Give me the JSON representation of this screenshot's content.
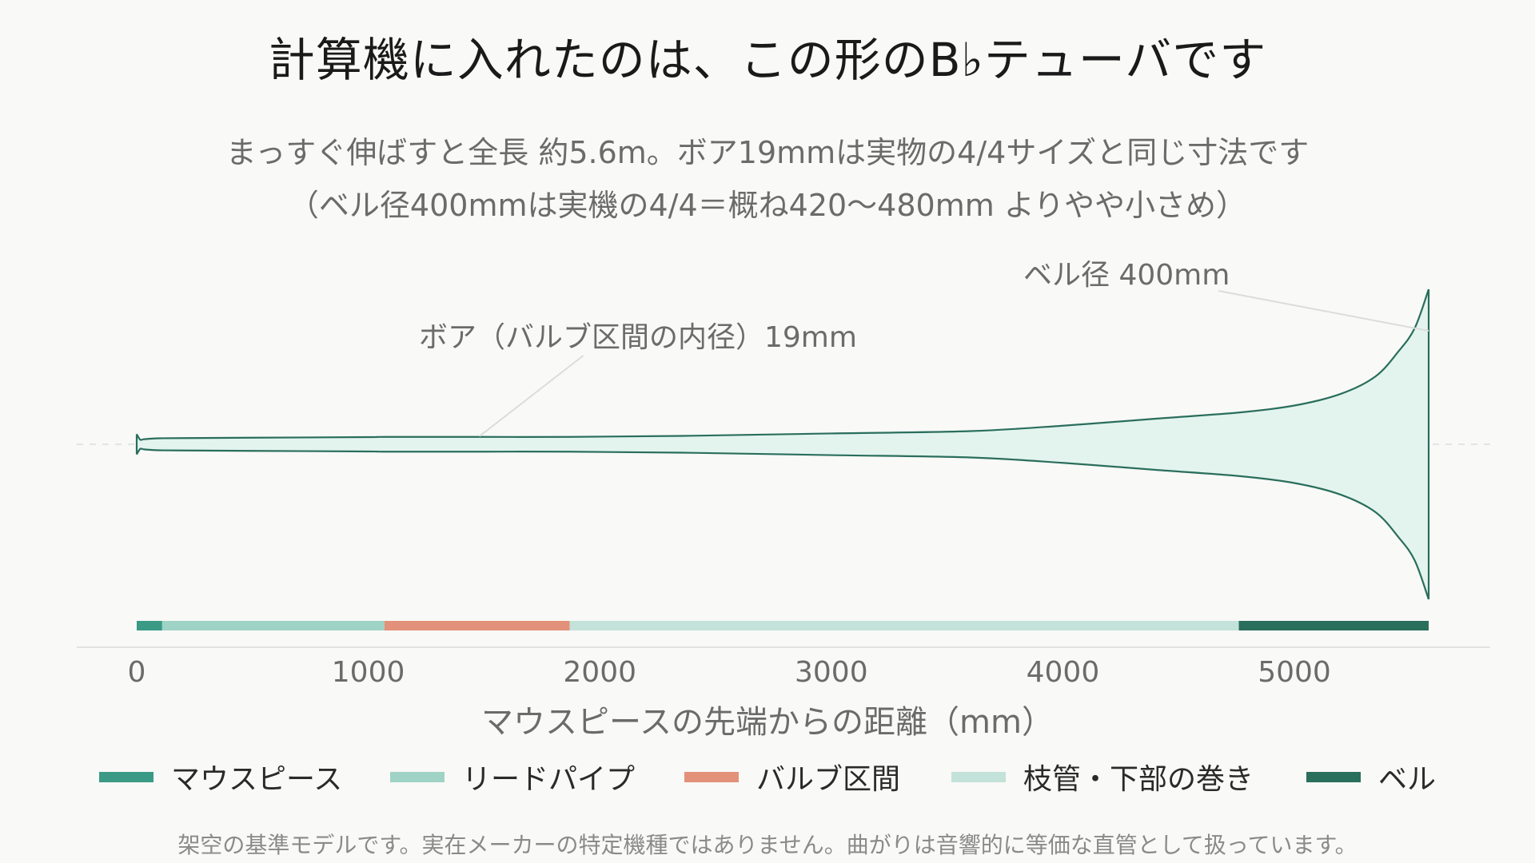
{
  "title": "計算機に入れたのは、この形のB♭テューバです",
  "subtitle": {
    "line1": "まっすぐ伸ばすと全長 約5.6m。ボア19mmは実物の4/4サイズと同じ寸法です",
    "line2": "（ベル径400mmは実機の4/4＝概ね420〜480mm よりやや小さめ）"
  },
  "footnote": "架空の基準モデルです。実在メーカーの特定機種ではありません。曲がりは音響的に等価な直管として扱っています。",
  "colors": {
    "outline": "#2a6e5c",
    "fill": "#e3f4ee",
    "annotation_line": "#dcdcdc",
    "axis": "#e2e2e2",
    "tick_text": "#6b6b6b"
  },
  "chart_data": {
    "type": "area",
    "xlabel": "マウスピースの先端からの距離（mm）",
    "ylabel": "",
    "xlim": [
      0,
      5600
    ],
    "xticks": [
      0,
      1000,
      2000,
      3000,
      4000,
      5000
    ],
    "profile": {
      "description": "",
      "x": [
        0,
        15,
        30,
        60,
        100,
        200,
        500,
        1000,
        1070,
        1500,
        1870,
        2400,
        3000,
        3600,
        4000,
        4400,
        4760,
        5000,
        5200,
        5350,
        5450,
        5520,
        5580
      ],
      "diameter": [
        26,
        12,
        13,
        14.5,
        15.5,
        16,
        17,
        18.5,
        19,
        19,
        19,
        22,
        28,
        34,
        48,
        66,
        82,
        100,
        130,
        175,
        240,
        300,
        400
      ]
    },
    "sections": [
      {
        "name": "マウスピース",
        "start": 0,
        "end": 110,
        "color": "#3a9a86"
      },
      {
        "name": "リードパイプ",
        "start": 110,
        "end": 1070,
        "color": "#9fd3c5"
      },
      {
        "name": "バルブ区間",
        "start": 1070,
        "end": 1870,
        "color": "#e3917a"
      },
      {
        "name": "枝管・下部の巻き",
        "start": 1870,
        "end": 4760,
        "color": "#c3e2d9"
      },
      {
        "name": "ベル",
        "start": 4760,
        "end": 5580,
        "color": "#2a6e5c"
      }
    ],
    "annotations": [
      {
        "text": "ボア（バルブ区間の内径）19mm",
        "x": 1480
      },
      {
        "text": "ベル径 400mm",
        "x": 5580
      }
    ],
    "legend_position": "bottom"
  }
}
